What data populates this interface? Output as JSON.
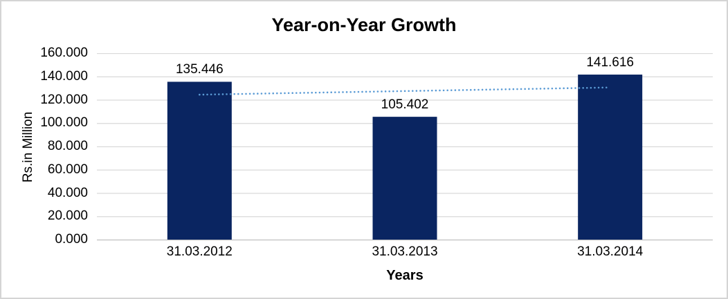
{
  "chart_data": {
    "type": "bar",
    "title": "Year-on-Year Growth",
    "xlabel": "Years",
    "ylabel": "Rs.in Million",
    "categories": [
      "31.03.2012",
      "31.03.2013",
      "31.03.2014"
    ],
    "values": [
      135.446,
      105.402,
      141.616
    ],
    "data_labels": [
      "135.446",
      "105.402",
      "141.616"
    ],
    "ylim": [
      0,
      160
    ],
    "ytick_step": 20,
    "ytick_labels": [
      "0.000",
      "20.000",
      "40.000",
      "60.000",
      "80.000",
      "100.000",
      "120.000",
      "140.000",
      "160.000"
    ],
    "grid": true,
    "legend": "none",
    "trendline": {
      "type": "linear",
      "style": "dotted",
      "start_value": 124.403,
      "end_value": 130.573
    },
    "colors": {
      "bar": "#0a2561",
      "trendline": "#5b9bd5",
      "gridline": "#d9d9d9",
      "axis_line": "#bfbfbf",
      "text": "#000000",
      "border": "#d4d4d4",
      "background": "#ffffff"
    }
  }
}
